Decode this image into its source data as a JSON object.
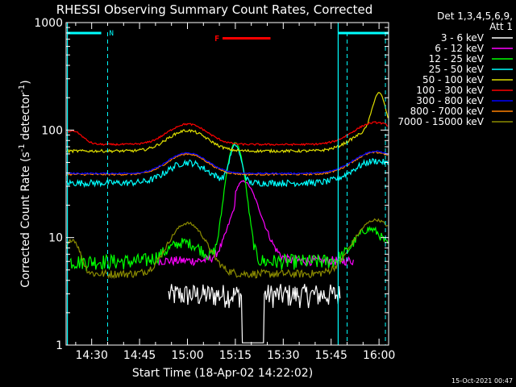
{
  "chart_data": {
    "type": "line",
    "title": "RHESSI Observing Summary Count Rates, Corrected",
    "xlabel": "Start Time (18-Apr-02 14:22:02)",
    "ylabel_prefix": "Corrected Count Rate (s",
    "ylabel_sup1": "-1",
    "ylabel_mid": " detector",
    "ylabel_sup2": "-1",
    "ylabel_suffix": ")",
    "y_scale": "log",
    "ylim": [
      1,
      1000
    ],
    "xlim_minutes_after_14_22": [
      0,
      101
    ],
    "x_ticks": [
      {
        "label": "14:30",
        "m": 8
      },
      {
        "label": "14:45",
        "m": 23
      },
      {
        "label": "15:00",
        "m": 38
      },
      {
        "label": "15:15",
        "m": 53
      },
      {
        "label": "15:30",
        "m": 68
      },
      {
        "label": "15:45",
        "m": 83
      },
      {
        "label": "16:00",
        "m": 98
      }
    ],
    "y_ticks": [
      {
        "label": "1",
        "v": 1
      },
      {
        "label": "10",
        "v": 10
      },
      {
        "label": "100",
        "v": 100
      },
      {
        "label": "1000",
        "v": 1000
      }
    ],
    "legend": {
      "header1": "Det 1,3,4,5,6,9,",
      "header2": "Att 1",
      "placement": "right"
    },
    "series": [
      {
        "name": "3 - 6 keV",
        "color": "#ffffff"
      },
      {
        "name": "6 - 12 keV",
        "color": "#ff00ff"
      },
      {
        "name": "12 - 25 keV",
        "color": "#00ff00"
      },
      {
        "name": "25 - 50 keV",
        "color": "#00ffff"
      },
      {
        "name": "50 - 100 keV",
        "color": "#e0e000"
      },
      {
        "name": "100 - 300 keV",
        "color": "#ff0000"
      },
      {
        "name": "300 - 800 keV",
        "color": "#0000ff"
      },
      {
        "name": "800 - 7000 keV",
        "color": "#ff8000"
      },
      {
        "name": "7000 - 15000 keV",
        "color": "#8a8a00"
      }
    ],
    "flags": [
      {
        "label": "N",
        "color": "#00ffff"
      },
      {
        "label": "F",
        "color": "#ff0000"
      }
    ],
    "footer": "15-Oct-2021 00:47"
  }
}
